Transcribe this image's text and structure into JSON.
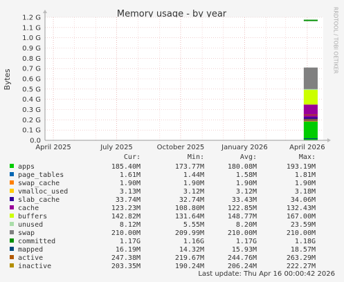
{
  "chart_data": {
    "type": "area",
    "title": "Memory usage - by year",
    "ylabel": "Bytes",
    "watermark": "RRDTOOL / TOBI OETIKER",
    "ylim": [
      0,
      1.2
    ],
    "y_unit": "G",
    "y_ticks": [
      "0.0",
      "0.1 G",
      "0.2 G",
      "0.3 G",
      "0.4 G",
      "0.5 G",
      "0.6 G",
      "0.7 G",
      "0.8 G",
      "0.9 G",
      "1.0 G",
      "1.1 G",
      "1.2 G"
    ],
    "x_ticks": [
      "April 2025",
      "July 2025",
      "October 2025",
      "January 2026",
      "April 2026"
    ],
    "grid": true,
    "stack_x_range": [
      "2026-03-27",
      "2026-04-16"
    ],
    "stack_order": [
      "apps",
      "page_tables",
      "swap_cache",
      "vmalloc_used",
      "slab_cache",
      "cache",
      "buffers",
      "unused",
      "swap"
    ],
    "line_series": [
      "committed",
      "mapped",
      "active",
      "inactive"
    ],
    "legend_headers": [
      "Cur:",
      "Min:",
      "Avg:",
      "Max:"
    ],
    "legend": [
      {
        "name": "apps",
        "color": "#00CC00",
        "cur": "185.40M",
        "min": "173.77M",
        "avg": "180.08M",
        "max": "193.19M",
        "value_g": 0.1854
      },
      {
        "name": "page_tables",
        "color": "#0066B3",
        "cur": "1.61M",
        "min": "1.44M",
        "avg": "1.58M",
        "max": "1.81M",
        "value_g": 0.0016
      },
      {
        "name": "swap_cache",
        "color": "#FF8000",
        "cur": "1.90M",
        "min": "1.90M",
        "avg": "1.90M",
        "max": "1.90M",
        "value_g": 0.0019
      },
      {
        "name": "vmalloc_used",
        "color": "#FFCC00",
        "cur": "3.13M",
        "min": "3.12M",
        "avg": "3.12M",
        "max": "3.18M",
        "value_g": 0.0031
      },
      {
        "name": "slab_cache",
        "color": "#330099",
        "cur": "33.74M",
        "min": "32.74M",
        "avg": "33.43M",
        "max": "34.06M",
        "value_g": 0.0337
      },
      {
        "name": "cache",
        "color": "#990099",
        "cur": "123.23M",
        "min": "108.80M",
        "avg": "122.85M",
        "max": "132.43M",
        "value_g": 0.1232
      },
      {
        "name": "buffers",
        "color": "#CCFF00",
        "cur": "142.82M",
        "min": "131.64M",
        "avg": "148.77M",
        "max": "167.00M",
        "value_g": 0.1428
      },
      {
        "name": "unused",
        "color": "#AADDAA",
        "cur": "8.12M",
        "min": "5.55M",
        "avg": "8.20M",
        "max": "23.59M",
        "value_g": 0.0081
      },
      {
        "name": "swap",
        "color": "#808080",
        "cur": "210.00M",
        "min": "209.99M",
        "avg": "210.00M",
        "max": "210.00M",
        "value_g": 0.21
      },
      {
        "name": "committed",
        "color": "#008F00",
        "cur": "1.17G",
        "min": "1.16G",
        "avg": "1.17G",
        "max": "1.18G",
        "value_g": 1.17
      },
      {
        "name": "mapped",
        "color": "#00487D",
        "cur": "16.19M",
        "min": "14.32M",
        "avg": "15.93M",
        "max": "18.57M",
        "value_g": 0.0162
      },
      {
        "name": "active",
        "color": "#B35A00",
        "cur": "247.38M",
        "min": "219.67M",
        "avg": "244.76M",
        "max": "263.29M",
        "value_g": 0.2474
      },
      {
        "name": "inactive",
        "color": "#B38F00",
        "cur": "203.35M",
        "min": "190.24M",
        "avg": "206.24M",
        "max": "222.27M",
        "value_g": 0.2034
      }
    ],
    "last_update": "Last update: Thu Apr 16 00:00:42 2026"
  }
}
